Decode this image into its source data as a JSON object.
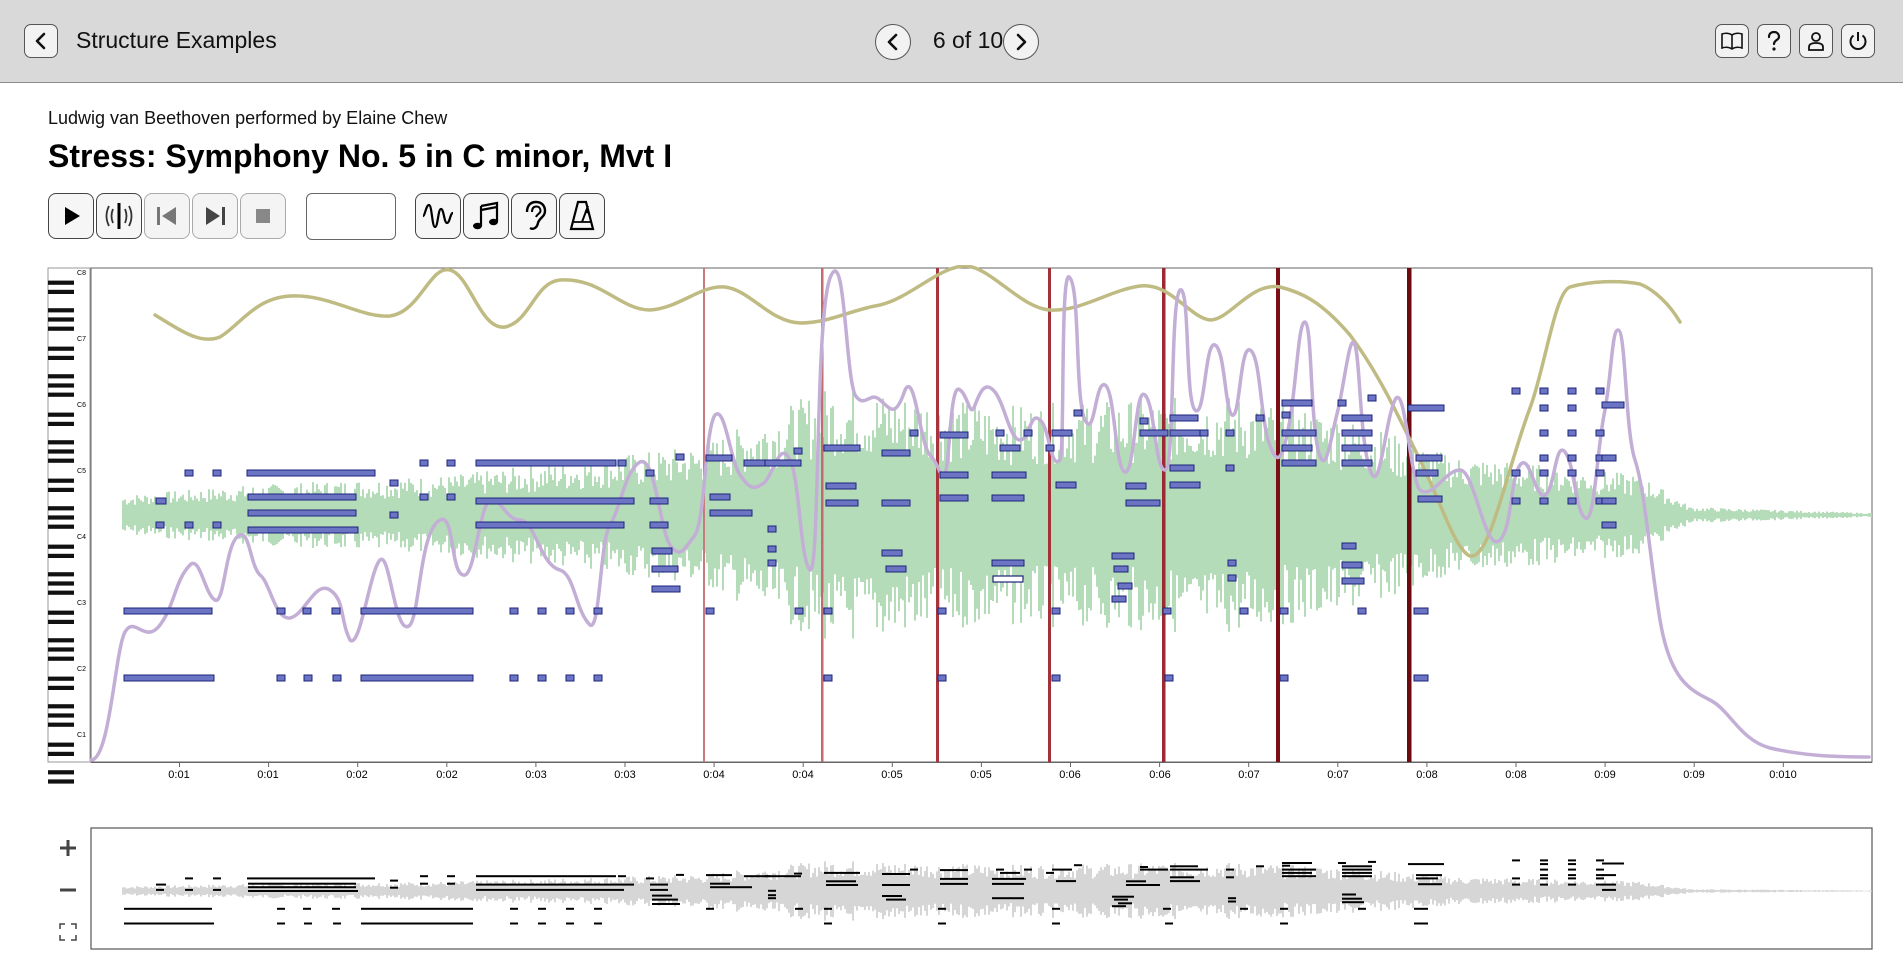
{
  "header": {
    "back_icon": "chevron-left-icon",
    "title": "Structure Examples",
    "pager": "6 of 10",
    "prev_icon": "chevron-left-icon",
    "next_icon": "chevron-right-icon",
    "right_icons": [
      "book-icon",
      "help-icon",
      "user-icon",
      "power-icon"
    ]
  },
  "piece": {
    "composer_line": "Ludwig van Beethoven performed by Elaine Chew",
    "title": "Stress: Symphony No. 5 in C minor, Mvt I"
  },
  "toolbar": {
    "time_value": "",
    "transport_icons": [
      "play-icon",
      "audio-focus-icon",
      "skip-back-icon",
      "skip-forward-icon",
      "stop-icon"
    ],
    "view_icons": [
      "waveform-icon",
      "music-note-icon",
      "ear-icon",
      "metronome-icon"
    ]
  },
  "piano_roll": {
    "octave_labels": [
      "C8",
      "C7",
      "C6",
      "C5",
      "C4",
      "C3",
      "C2",
      "C1"
    ],
    "time_ticks": [
      "0:01",
      "0:01",
      "0:02",
      "0:02",
      "0:03",
      "0:03",
      "0:04",
      "0:04",
      "0:05",
      "0:05",
      "0:06",
      "0:06",
      "0:07",
      "0:07",
      "0:08",
      "0:08",
      "0:09",
      "0:09",
      "0:010"
    ],
    "colors": {
      "waveform": "#b5dcb8",
      "notes_fill": "#6c74c4",
      "notes_stroke": "#1d237a",
      "stress_curve": "#c3aed6",
      "olive_curve": "#bfbb82",
      "boundary": "#9b1b24"
    }
  },
  "minimap": {
    "zoom_in_icon": "plus-icon",
    "zoom_out_icon": "minus-icon",
    "fit_icon": "fit-screen-icon",
    "colors": {
      "waveform": "#d6d6d6",
      "notes": "#000000"
    }
  }
}
